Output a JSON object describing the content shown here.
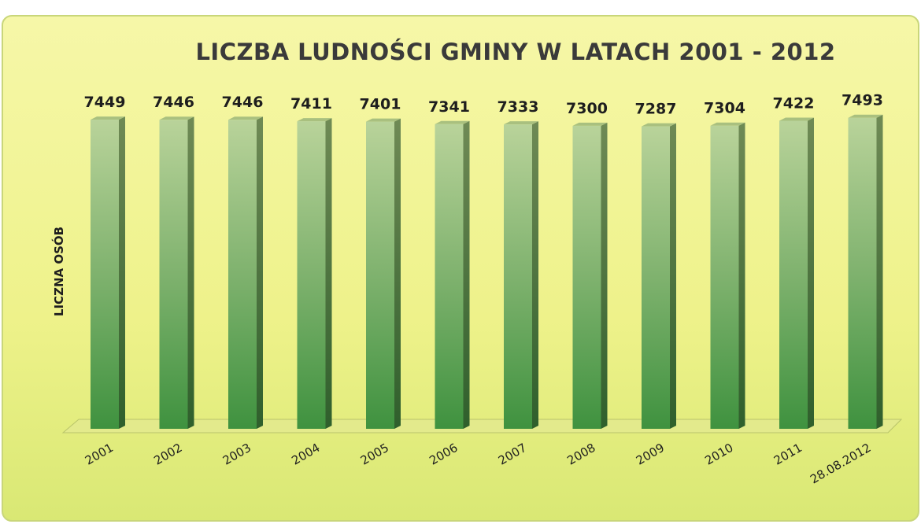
{
  "chart_data": {
    "type": "bar",
    "title": "LICZBA LUDNOŚCI GMINY W LATACH  2001 - 2012",
    "y_label": "LICZNA OSÓB",
    "categories": [
      "2001",
      "2002",
      "2003",
      "2004",
      "2005",
      "2006",
      "2007",
      "2008",
      "2009",
      "2010",
      "2011",
      "28.08.2012"
    ],
    "values": [
      7449,
      7446,
      7446,
      7411,
      7401,
      7341,
      7333,
      7300,
      7287,
      7304,
      7422,
      7493
    ],
    "color": "#4e9a4a",
    "ylim": [
      0,
      8000
    ]
  }
}
